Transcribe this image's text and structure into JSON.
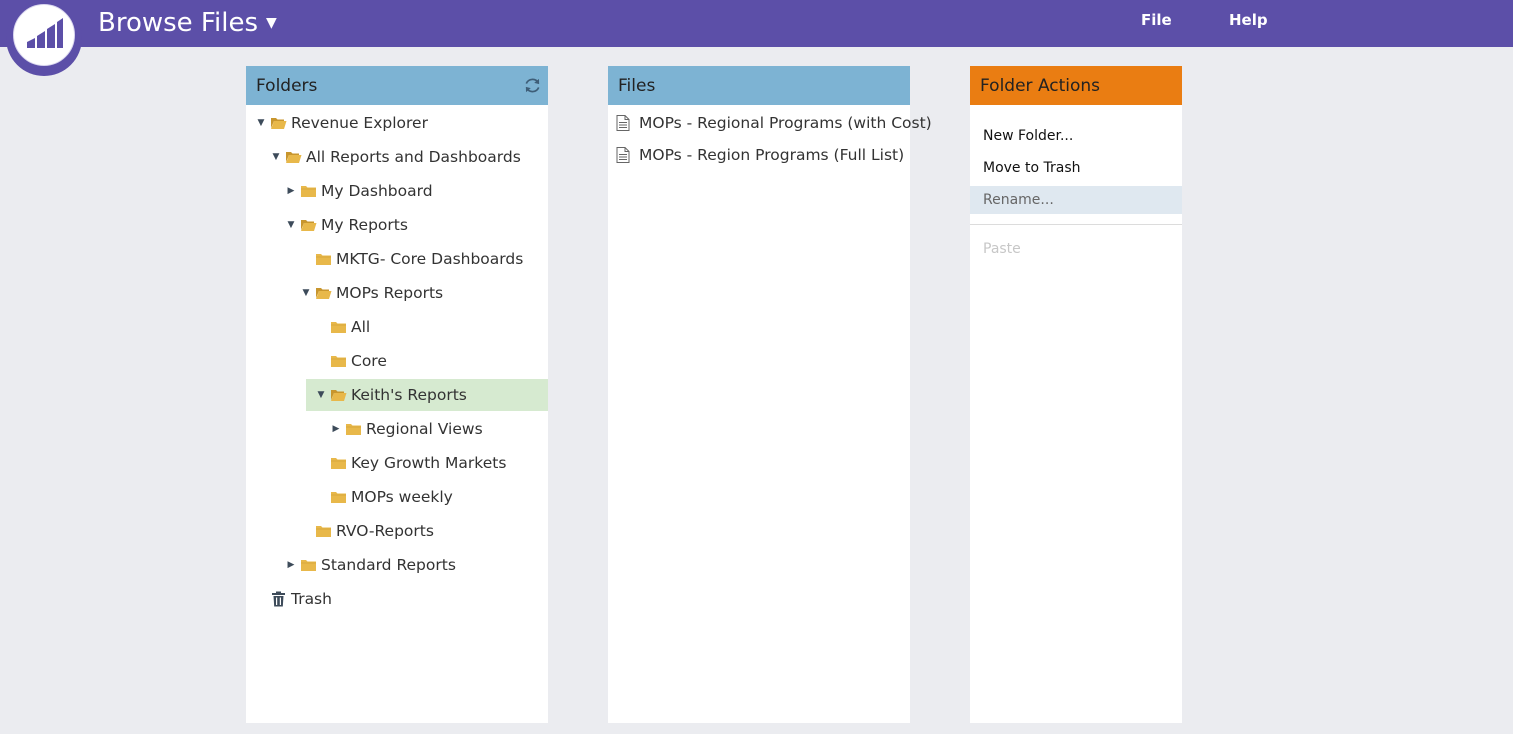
{
  "header": {
    "title": "Browse Files",
    "menu": {
      "file": "File",
      "help": "Help"
    }
  },
  "folders": {
    "title": "Folders",
    "tree": [
      {
        "label": "Revenue Explorer",
        "icon": "open-folder-icon",
        "state": "expanded"
      },
      {
        "label": "All Reports and Dashboards",
        "icon": "open-folder-icon",
        "state": "expanded"
      },
      {
        "label": "My Dashboard",
        "icon": "folder-icon",
        "state": "collapsed"
      },
      {
        "label": "My Reports",
        "icon": "open-folder-icon",
        "state": "expanded"
      },
      {
        "label": "MKTG- Core Dashboards",
        "icon": "folder-icon",
        "state": "leaf"
      },
      {
        "label": "MOPs Reports",
        "icon": "open-folder-icon",
        "state": "expanded"
      },
      {
        "label": "All",
        "icon": "folder-icon",
        "state": "leaf"
      },
      {
        "label": "Core",
        "icon": "folder-icon",
        "state": "leaf"
      },
      {
        "label": "Keith's Reports",
        "icon": "open-folder-icon",
        "state": "expanded",
        "selected": true
      },
      {
        "label": "Regional Views",
        "icon": "folder-icon",
        "state": "collapsed"
      },
      {
        "label": "Key Growth Markets",
        "icon": "folder-icon",
        "state": "leaf"
      },
      {
        "label": "MOPs weekly",
        "icon": "folder-icon",
        "state": "leaf"
      },
      {
        "label": "RVO-Reports",
        "icon": "folder-icon",
        "state": "leaf"
      },
      {
        "label": "Standard Reports",
        "icon": "folder-icon",
        "state": "collapsed"
      },
      {
        "label": "Trash",
        "icon": "trash-icon",
        "state": "leaf"
      }
    ]
  },
  "files": {
    "title": "Files",
    "items": [
      {
        "label": "MOPs - Regional Programs (with Cost)",
        "icon": "document-icon"
      },
      {
        "label": "MOPs - Region Programs (Full List)",
        "icon": "document-icon"
      }
    ]
  },
  "actions": {
    "title": "Folder Actions",
    "items": [
      {
        "label": "New Folder...",
        "state": "enabled"
      },
      {
        "label": "Move to Trash",
        "state": "enabled"
      },
      {
        "label": "Rename...",
        "state": "hovered"
      },
      {
        "label": "Paste",
        "state": "disabled"
      }
    ]
  },
  "colors": {
    "topbar": "#5c4fa8",
    "panel_header_blue": "#7db3d3",
    "panel_header_orange": "#ea7d12",
    "selected_row": "#d6ead0",
    "folder": "#e8b84a",
    "page_background": "#ebecf0"
  }
}
